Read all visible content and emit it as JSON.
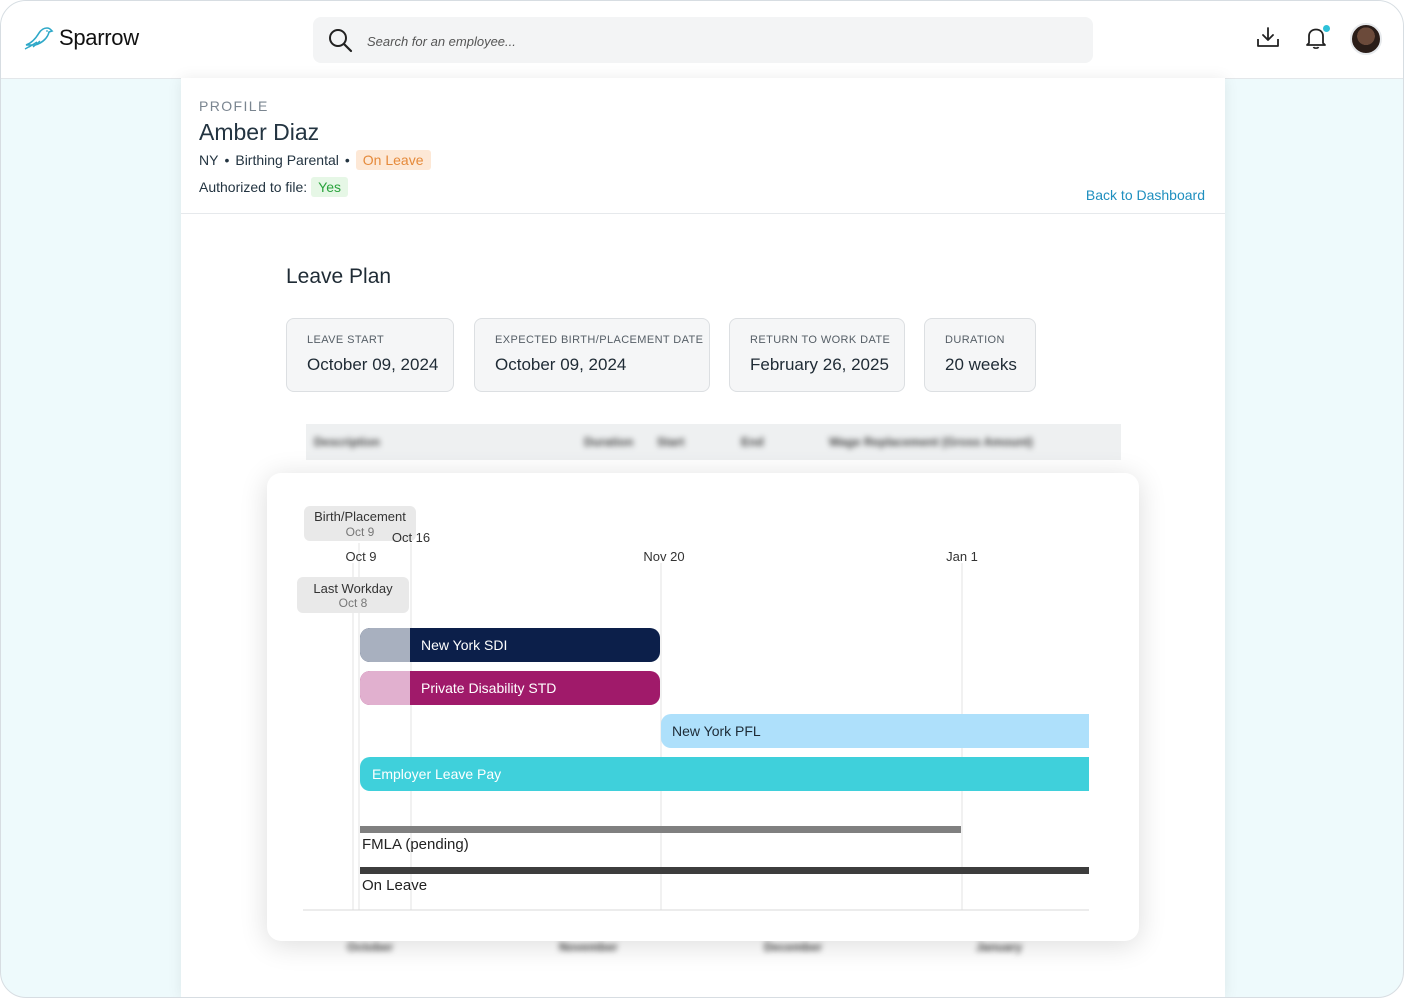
{
  "app": {
    "name": "Sparrow"
  },
  "search": {
    "placeholder": "Search for an employee..."
  },
  "topbar": {
    "icons": [
      "download-icon",
      "bell-icon",
      "avatar"
    ],
    "notification_dot_color": "#2ec1d9"
  },
  "profile": {
    "eyebrow": "PROFILE",
    "name": "Amber Diaz",
    "state": "NY",
    "leave_type": "Birthing Parental",
    "status": "On Leave",
    "authorized_label": "Authorized to file:",
    "authorized_value": "Yes",
    "back_link": "Back to Dashboard"
  },
  "leave_plan": {
    "title": "Leave Plan",
    "cards": [
      {
        "label": "LEAVE START",
        "value": "October 09, 2024"
      },
      {
        "label": "EXPECTED BIRTH/PLACEMENT DATE",
        "value": "October 09, 2024"
      },
      {
        "label": "RETURN TO WORK DATE",
        "value": "February 26, 2025"
      },
      {
        "label": "DURATION",
        "value": "20 weeks"
      }
    ],
    "table_headers": [
      "Description",
      "Duration",
      "Start",
      "End",
      "Wage Replacement (Gross Amount)"
    ],
    "month_labels": [
      "October",
      "November",
      "December",
      "January"
    ]
  },
  "timeline": {
    "markers": [
      {
        "id": "birth",
        "title": "Birth/Placement",
        "sub": "Oct 9"
      },
      {
        "id": "last",
        "title": "Last Workday",
        "sub": "Oct 8"
      }
    ],
    "ticks": [
      "Oct 9",
      "Oct 16",
      "Nov 20",
      "Jan 1"
    ],
    "bars": [
      {
        "id": "sdi",
        "label": "New York SDI",
        "color": "#0c1f4a",
        "wait_color": "#a8b0bf",
        "text_color": "#ffffff"
      },
      {
        "id": "std",
        "label": "Private Disability STD",
        "color": "#a01a6a",
        "wait_color": "#e1b0cf",
        "text_color": "#ffffff"
      },
      {
        "id": "pfl",
        "label": "New York PFL",
        "color": "#aee0fb",
        "text_color": "#1d2b36"
      },
      {
        "id": "elp",
        "label": "Employer Leave Pay",
        "color": "#3fd0db",
        "text_color": "#ffffff"
      }
    ],
    "lines": [
      {
        "id": "fmla",
        "label": "FMLA (pending)",
        "color": "#808080"
      },
      {
        "id": "onleave",
        "label": "On Leave",
        "color": "#3d3d3d"
      }
    ]
  }
}
